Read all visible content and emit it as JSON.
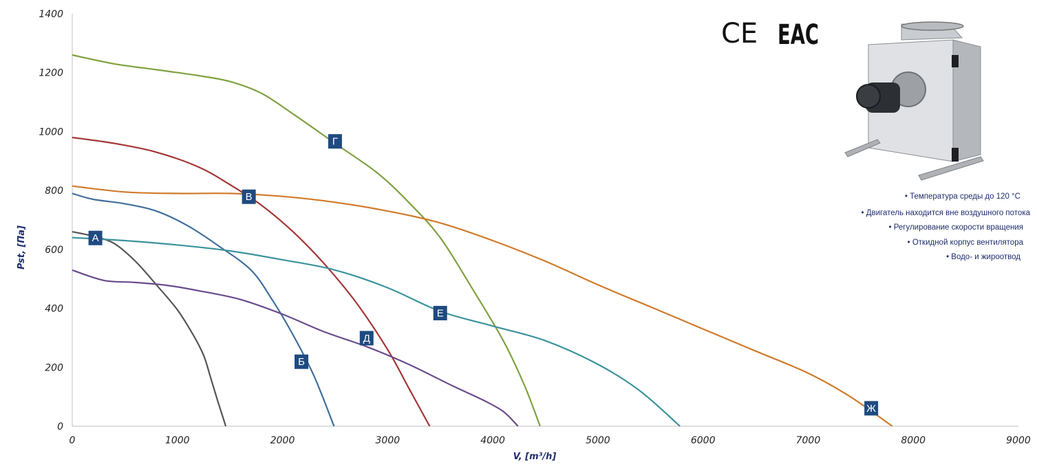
{
  "chart_data": {
    "type": "line",
    "title": "",
    "xlabel": "V, [m³/h]",
    "ylabel": "Pst, [Па]",
    "xlim": [
      0,
      9000
    ],
    "ylim": [
      0,
      1400
    ],
    "x_ticks": [
      "0",
      "1000",
      "2000",
      "3000",
      "4000",
      "5000",
      "6000",
      "7000",
      "8000",
      "9000"
    ],
    "y_ticks": [
      "0",
      "200",
      "400",
      "600",
      "800",
      "1000",
      "1200",
      "1400"
    ],
    "grid": "none",
    "series": [
      {
        "name": "А",
        "color": "#555555",
        "label_at": [
          220,
          640
        ],
        "points": [
          [
            0,
            660
          ],
          [
            200,
            645
          ],
          [
            400,
            620
          ],
          [
            600,
            560
          ],
          [
            800,
            480
          ],
          [
            1000,
            395
          ],
          [
            1150,
            310
          ],
          [
            1250,
            240
          ],
          [
            1320,
            160
          ],
          [
            1380,
            90
          ],
          [
            1460,
            0
          ]
        ]
      },
      {
        "name": "Б",
        "color": "#3f6e9c",
        "label_at": [
          2180,
          220
        ],
        "points": [
          [
            0,
            790
          ],
          [
            200,
            770
          ],
          [
            500,
            755
          ],
          [
            800,
            730
          ],
          [
            1100,
            680
          ],
          [
            1400,
            610
          ],
          [
            1700,
            530
          ],
          [
            1900,
            430
          ],
          [
            2100,
            310
          ],
          [
            2300,
            170
          ],
          [
            2490,
            0
          ]
        ]
      },
      {
        "name": "В",
        "color": "#a33535",
        "label_at": [
          1680,
          780
        ],
        "points": [
          [
            0,
            980
          ],
          [
            400,
            960
          ],
          [
            800,
            930
          ],
          [
            1200,
            880
          ],
          [
            1500,
            820
          ],
          [
            1800,
            750
          ],
          [
            2100,
            660
          ],
          [
            2400,
            550
          ],
          [
            2700,
            420
          ],
          [
            3000,
            260
          ],
          [
            3200,
            130
          ],
          [
            3400,
            0
          ]
        ]
      },
      {
        "name": "Г",
        "color": "#7fa040",
        "label_at": [
          2500,
          968
        ],
        "points": [
          [
            0,
            1260
          ],
          [
            400,
            1230
          ],
          [
            800,
            1210
          ],
          [
            1200,
            1190
          ],
          [
            1500,
            1170
          ],
          [
            1800,
            1130
          ],
          [
            2100,
            1060
          ],
          [
            2500,
            960
          ],
          [
            2900,
            860
          ],
          [
            3200,
            760
          ],
          [
            3500,
            640
          ],
          [
            3800,
            470
          ],
          [
            4100,
            290
          ],
          [
            4300,
            140
          ],
          [
            4450,
            0
          ]
        ]
      },
      {
        "name": "Д",
        "color": "#6a4a8c",
        "label_at": [
          2800,
          300
        ],
        "points": [
          [
            0,
            530
          ],
          [
            300,
            495
          ],
          [
            600,
            488
          ],
          [
            900,
            478
          ],
          [
            1200,
            460
          ],
          [
            1600,
            430
          ],
          [
            2000,
            380
          ],
          [
            2400,
            320
          ],
          [
            2800,
            270
          ],
          [
            3200,
            210
          ],
          [
            3600,
            140
          ],
          [
            3900,
            90
          ],
          [
            4100,
            50
          ],
          [
            4240,
            0
          ]
        ]
      },
      {
        "name": "Е",
        "color": "#3a929c",
        "label_at": [
          3500,
          385
        ],
        "points": [
          [
            0,
            640
          ],
          [
            500,
            630
          ],
          [
            1000,
            615
          ],
          [
            1500,
            595
          ],
          [
            2000,
            565
          ],
          [
            2500,
            530
          ],
          [
            3000,
            470
          ],
          [
            3500,
            390
          ],
          [
            4000,
            340
          ],
          [
            4500,
            290
          ],
          [
            5000,
            210
          ],
          [
            5400,
            120
          ],
          [
            5780,
            0
          ]
        ]
      },
      {
        "name": "Ж",
        "color": "#d07a2a",
        "label_at": [
          7600,
          62
        ],
        "points": [
          [
            0,
            815
          ],
          [
            500,
            795
          ],
          [
            1000,
            790
          ],
          [
            1500,
            790
          ],
          [
            2000,
            780
          ],
          [
            2500,
            760
          ],
          [
            3000,
            730
          ],
          [
            3500,
            690
          ],
          [
            4000,
            630
          ],
          [
            4500,
            560
          ],
          [
            5000,
            480
          ],
          [
            5500,
            405
          ],
          [
            6000,
            330
          ],
          [
            6500,
            255
          ],
          [
            7000,
            180
          ],
          [
            7400,
            100
          ],
          [
            7800,
            0
          ]
        ]
      }
    ]
  },
  "certification": {
    "ce": "CE",
    "eac": "EAC"
  },
  "product_image": {
    "icon": "cabinet-fan-icon"
  },
  "features": [
    "• Температура среды до 120 °C",
    "• Двигатель находится вне воздушного потока",
    "• Регулирование скорости вращения",
    "• Откидной корпус вентилятора",
    "• Водо- и жироотвод"
  ]
}
